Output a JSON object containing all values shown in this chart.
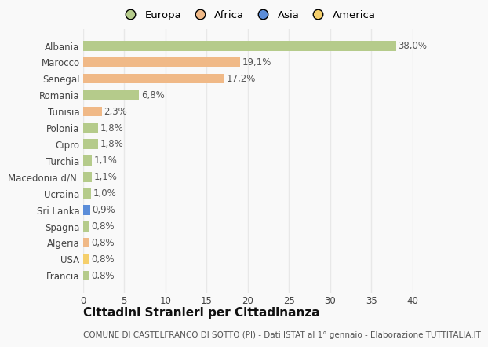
{
  "countries": [
    "Albania",
    "Marocco",
    "Senegal",
    "Romania",
    "Tunisia",
    "Polonia",
    "Cipro",
    "Turchia",
    "Macedonia d/N.",
    "Ucraina",
    "Sri Lanka",
    "Spagna",
    "Algeria",
    "USA",
    "Francia"
  ],
  "values": [
    38.0,
    19.1,
    17.2,
    6.8,
    2.3,
    1.8,
    1.8,
    1.1,
    1.1,
    1.0,
    0.9,
    0.8,
    0.8,
    0.8,
    0.8
  ],
  "labels": [
    "38,0%",
    "19,1%",
    "17,2%",
    "6,8%",
    "2,3%",
    "1,8%",
    "1,8%",
    "1,1%",
    "1,1%",
    "1,0%",
    "0,9%",
    "0,8%",
    "0,8%",
    "0,8%",
    "0,8%"
  ],
  "colors": [
    "#b5cb8b",
    "#f0b987",
    "#f0b987",
    "#b5cb8b",
    "#f0b987",
    "#b5cb8b",
    "#b5cb8b",
    "#b5cb8b",
    "#b5cb8b",
    "#b5cb8b",
    "#5b8dd9",
    "#b5cb8b",
    "#f0b987",
    "#f5cf6b",
    "#b5cb8b"
  ],
  "legend_labels": [
    "Europa",
    "Africa",
    "Asia",
    "America"
  ],
  "legend_colors": [
    "#b5cb8b",
    "#f0b987",
    "#5b8dd9",
    "#f5cf6b"
  ],
  "title": "Cittadini Stranieri per Cittadinanza",
  "subtitle": "COMUNE DI CASTELFRANCO DI SOTTO (PI) - Dati ISTAT al 1° gennaio - Elaborazione TUTTITALIA.IT",
  "xlim": [
    0,
    40
  ],
  "xticks": [
    0,
    5,
    10,
    15,
    20,
    25,
    30,
    35,
    40
  ],
  "background_color": "#f9f9f9",
  "grid_color": "#e8e8e8",
  "bar_height": 0.6,
  "title_fontsize": 11,
  "subtitle_fontsize": 7.5,
  "tick_fontsize": 8.5,
  "label_fontsize": 8.5,
  "legend_fontsize": 9.5
}
